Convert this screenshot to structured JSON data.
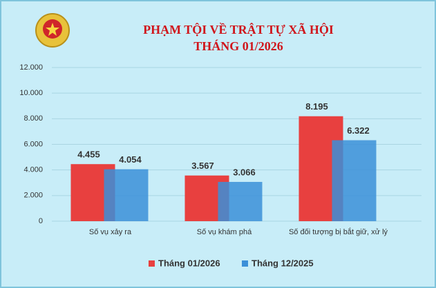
{
  "chart_data": {
    "type": "bar",
    "title": "PHẠM TỘI VỀ TRẬT TỰ XÃ HỘI",
    "subtitle": "THÁNG 01/2026",
    "categories": [
      "Số vụ xảy ra",
      "Số vụ khám phá",
      "Số đối tượng bị bắt giữ, xử lý"
    ],
    "series": [
      {
        "name": "Tháng 01/2026",
        "color": "#e8403f",
        "values": [
          4455,
          3567,
          8195
        ],
        "value_labels": [
          "4.455",
          "3.567",
          "8.195"
        ]
      },
      {
        "name": "Tháng 12/2025",
        "color": "#3b8fd8",
        "values": [
          4054,
          3066,
          6322
        ],
        "value_labels": [
          "4.054",
          "3.066",
          "6.322"
        ]
      }
    ],
    "ylim": [
      0,
      12000
    ],
    "yticks": [
      0,
      {
        "value": 2000,
        "label": "2.000"
      },
      {
        "value": 4000,
        "label": "4.000"
      },
      {
        "value": 6000,
        "label": "6.000"
      },
      {
        "value": 8000,
        "label": "8.000"
      },
      {
        "value": 10000,
        "label": "10.000"
      },
      {
        "value": 12000,
        "label": "12.000"
      }
    ],
    "grid": true,
    "legend": "bottom"
  }
}
